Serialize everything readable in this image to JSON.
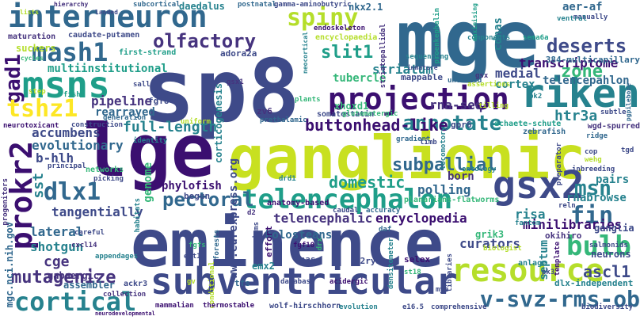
{
  "palette": {
    "p0": "#3b0f70",
    "p1": "#46337e",
    "p2": "#3e4a89",
    "p3": "#31688e",
    "p4": "#26828e",
    "p5": "#1f9e89",
    "p6": "#35b779",
    "p7": "#6ece58",
    "p8": "#b5de2b",
    "p9": "#fde725"
  },
  "words": [
    {
      "id": "mge",
      "text": "mge",
      "color": "#31688e"
    },
    {
      "id": "sp8",
      "text": "sp8",
      "color": "#3e4a89"
    },
    {
      "id": "lge",
      "text": "lge",
      "color": "#3b0f70"
    },
    {
      "id": "ganglionic",
      "text": "ganglionic",
      "color": "#c8e020"
    },
    {
      "id": "eminence",
      "text": "eminence",
      "color": "#3e4a89"
    },
    {
      "id": "interneuron",
      "text": "interneuron",
      "color": "#31688e"
    },
    {
      "id": "msns",
      "text": "msns",
      "color": "#1f9e89"
    },
    {
      "id": "mash1",
      "text": "mash1",
      "color": "#31688e"
    },
    {
      "id": "spiny",
      "text": "spiny",
      "color": "#b5de2b"
    },
    {
      "id": "olfactory",
      "text": "olfactory",
      "color": "#46337e"
    },
    {
      "id": "deserts",
      "text": "deserts",
      "color": "#3e4a89"
    },
    {
      "id": "slit1",
      "text": "slit1",
      "color": "#1f9e89"
    },
    {
      "id": "zone",
      "text": "zone",
      "color": "#35b779"
    },
    {
      "id": "projection",
      "text": "projection",
      "color": "#3b0f70"
    },
    {
      "id": "riken",
      "text": "riken",
      "color": "#26828e"
    },
    {
      "id": "gad1",
      "text": "gad1",
      "color": "#3b0f70"
    },
    {
      "id": "tshz1",
      "text": "tshz1",
      "color": "#fde725"
    },
    {
      "id": "dlx1",
      "text": "dlx1",
      "color": "#31688e"
    },
    {
      "id": "prokr2",
      "text": "prokr2",
      "color": "#3b0f70"
    },
    {
      "id": "telencephalon",
      "text": "telencephalon",
      "color": "#1f9e89"
    },
    {
      "id": "pectoral",
      "text": "pectoral",
      "color": "#31688e"
    },
    {
      "id": "gsx2",
      "text": "gsx2",
      "color": "#3e4a89"
    },
    {
      "id": "annotate",
      "text": "annotate",
      "color": "#26828e"
    },
    {
      "id": "fin",
      "text": "fin",
      "color": "#31688e"
    },
    {
      "id": "msn",
      "text": "msn",
      "color": "#26828e"
    },
    {
      "id": "bulb",
      "text": "bulb",
      "color": "#35b779"
    },
    {
      "id": "resource",
      "text": "resource",
      "color": "#b5de2b"
    },
    {
      "id": "subventricular",
      "text": "subventricular",
      "color": "#3e4a89"
    },
    {
      "id": "cortical",
      "text": "cortical",
      "color": "#26828e"
    },
    {
      "id": "v-svz-rms-ob",
      "text": "v-svz-rms-ob",
      "color": "#31688e"
    },
    {
      "id": "mutagenize",
      "text": "mutagenize",
      "color": "#46337e"
    },
    {
      "id": "ascl1",
      "text": "ascl1",
      "color": "#3e4a89"
    },
    {
      "id": "multiinstitutional",
      "text": "multiinstitutional",
      "color": "#1f9e89"
    },
    {
      "id": "striatum",
      "text": "striatum",
      "color": "#26828e"
    },
    {
      "id": "tubercle",
      "text": "tubercle",
      "color": "#35b779"
    },
    {
      "id": "transcriptome",
      "text": "transcriptome",
      "color": "#3b0f70"
    },
    {
      "id": "medial",
      "text": "medial",
      "color": "#3e4a89"
    },
    {
      "id": "pipeline",
      "text": "pipeline",
      "color": "#46337e"
    },
    {
      "id": "rearrayed",
      "text": "rearrayed",
      "color": "#31688e"
    },
    {
      "id": "full-length",
      "text": "full-length",
      "color": "#26828e"
    },
    {
      "id": "accumbens",
      "text": "accumbens",
      "color": "#3e4a89"
    },
    {
      "id": "evolutionary",
      "text": "evolutionary",
      "color": "#31688e"
    },
    {
      "id": "b-hlh",
      "text": "b-hlh",
      "color": "#3e4a89"
    },
    {
      "id": "buttonhead-like",
      "text": "buttonhead-like",
      "color": "#3b0f70"
    },
    {
      "id": "rna-seq",
      "text": "rna-seq",
      "color": "#46337e"
    },
    {
      "id": "cortex",
      "text": "cortex",
      "color": "#26828e"
    },
    {
      "id": "telencepahlon",
      "text": "telencepahlon",
      "color": "#31688e"
    },
    {
      "id": "htr3a",
      "text": "htr3a",
      "color": "#26828e"
    },
    {
      "id": "domestic",
      "text": "domestic",
      "color": "#1f9e89"
    },
    {
      "id": "subpallial",
      "text": "subpallial",
      "color": "#31688e"
    },
    {
      "id": "sst",
      "text": "sst",
      "color": "#26828e"
    },
    {
      "id": "phylofish",
      "text": "phylofish",
      "color": "#3b0f70"
    },
    {
      "id": "tangentially",
      "text": "tangentially",
      "color": "#3e4a89"
    },
    {
      "id": "telencephalic",
      "text": "telencephalic",
      "color": "#46337e"
    },
    {
      "id": "encyclopedia",
      "text": "encyclopedia",
      "color": "#3b0f70"
    },
    {
      "id": "polling",
      "text": "polling",
      "color": "#31688e"
    },
    {
      "id": "rnabrowse",
      "text": "rnabrowse",
      "color": "#26828e"
    },
    {
      "id": "minilibraries",
      "text": "minilibraries",
      "color": "#3b0f70"
    },
    {
      "id": "lateral",
      "text": "lateral",
      "color": "#31688e"
    },
    {
      "id": "shotgun",
      "text": "shotgun",
      "color": "#26828e"
    },
    {
      "id": "cge",
      "text": "cge",
      "color": "#46337e"
    },
    {
      "id": "holosteans",
      "text": "holosteans",
      "color": "#31688e"
    },
    {
      "id": "curators",
      "text": "curators",
      "color": "#3e4a89"
    },
    {
      "id": "risa",
      "text": "risa",
      "color": "#26828e"
    },
    {
      "id": "septum",
      "text": "septum",
      "color": "#26828e"
    },
    {
      "id": "neurons",
      "text": "neurons",
      "color": "#3e4a89"
    },
    {
      "id": "gabaergic",
      "text": "gabaergic",
      "color": "#46337e"
    },
    {
      "id": "assembler",
      "text": "assembler",
      "color": "#31688e"
    },
    {
      "id": "genome",
      "text": "genome",
      "color": "#35b779"
    },
    {
      "id": "born",
      "text": "born",
      "color": "#46337e"
    },
    {
      "id": "pairs",
      "text": "pairs",
      "color": "#26828e"
    },
    {
      "id": "emx2",
      "text": "emx2",
      "color": "#26828e"
    },
    {
      "id": "dnas",
      "text": "dnas",
      "color": "#3e4a89"
    },
    {
      "id": "grik3",
      "text": "grik3",
      "color": "#35b779"
    },
    {
      "id": "ganglia",
      "text": "ganglia",
      "color": "#3e4a89"
    },
    {
      "id": "okihiro",
      "text": "okihiro",
      "color": "#46337e"
    },
    {
      "id": "p2ry1",
      "text": "p2ry1",
      "color": "#3e4a89"
    },
    {
      "id": "selex",
      "text": "selex",
      "color": "#3b0f70"
    },
    {
      "id": "fgf8",
      "text": "fgf8",
      "color": "#3e4a89"
    },
    {
      "id": "xhoxd1",
      "text": "xhoxd1",
      "color": "#35b779"
    },
    {
      "id": "gpr6",
      "text": "gpr6",
      "color": "#3e4a89"
    },
    {
      "id": "corticogenesis",
      "text": "corticogenesis",
      "color": "#26828e"
    },
    {
      "id": "somatostatin",
      "text": "somatostatin",
      "color": "#3e4a89"
    },
    {
      "id": "zv6",
      "text": "zv6",
      "color": "#46337e"
    },
    {
      "id": "caudate-putamen",
      "text": "caudate-putamen",
      "color": "#3e4a89"
    },
    {
      "id": "maturation",
      "text": "maturation",
      "color": "#46337e"
    },
    {
      "id": "suckers",
      "text": "suckers",
      "color": "#b5de2b"
    },
    {
      "id": "first-strand",
      "text": "first-strand",
      "color": "#1f9e89"
    },
    {
      "id": "adora2a",
      "text": "adora2a",
      "color": "#3e4a89"
    },
    {
      "id": "daedalus",
      "text": "daedalus",
      "color": "#26828e"
    },
    {
      "id": "subcortical",
      "text": "subcortical",
      "color": "#31688e"
    },
    {
      "id": "postnatal",
      "text": "postnatal",
      "color": "#31688e"
    },
    {
      "id": "gamma-aminobutyric",
      "text": "gamma-aminobutyric",
      "color": "#3e4a89"
    },
    {
      "id": "nkx2-1",
      "text": "nkx2.1",
      "color": "#31688e"
    },
    {
      "id": "endoskeleton",
      "text": "endoskeleton",
      "color": "#3b0f70"
    },
    {
      "id": "encyclopaedia",
      "text": "encyclopaedia",
      "color": "#b5de2b"
    },
    {
      "id": "cdnas",
      "text": "cdnas",
      "color": "#26828e"
    },
    {
      "id": "aer-af",
      "text": "aer-af",
      "color": "#31688e"
    },
    {
      "id": "manually",
      "text": "manually",
      "color": "#3e4a89"
    },
    {
      "id": "ventral",
      "text": "ventral",
      "color": "#26828e"
    },
    {
      "id": "384-multicapillary",
      "text": "384-multicapillary",
      "color": "#31688e"
    },
    {
      "id": "components",
      "text": "components",
      "color": "#26828e"
    },
    {
      "id": "sema6a",
      "text": "sema6a",
      "color": "#1f9e89"
    },
    {
      "id": "sequencing",
      "text": "sequencing",
      "color": "#26828e"
    },
    {
      "id": "mappable",
      "text": "mappable",
      "color": "#3e4a89"
    },
    {
      "id": "unveiled",
      "text": "unveiled",
      "color": "#31688e"
    },
    {
      "id": "gsx",
      "text": "gsx",
      "color": "#46337e"
    },
    {
      "id": "assertions",
      "text": "assertions",
      "color": "#b5de2b"
    },
    {
      "id": "pk2",
      "text": "pk2",
      "color": "#26828e"
    },
    {
      "id": "subtle",
      "text": "subtle",
      "color": "#3e4a89"
    },
    {
      "id": "wgd-spurred",
      "text": "wgd-spurred",
      "color": "#46337e"
    },
    {
      "id": "tilling",
      "text": "tilling",
      "color": "#b5de2b"
    },
    {
      "id": "achaete-schute",
      "text": "achaete-schute",
      "color": "#1f9e89"
    },
    {
      "id": "zebrafish",
      "text": "zebrafish",
      "color": "#31688e"
    },
    {
      "id": "ridge",
      "text": "ridge",
      "color": "#31688e"
    },
    {
      "id": "cop",
      "text": "cop",
      "color": "#3e4a89"
    },
    {
      "id": "wehg",
      "text": "wehg",
      "color": "#b5de2b"
    },
    {
      "id": "tgd",
      "text": "tgd",
      "color": "#3e4a89"
    },
    {
      "id": "inbreeding",
      "text": "inbreeding",
      "color": "#3e4a89"
    },
    {
      "id": "planarians-flatworms",
      "text": "planarians-flatworms",
      "color": "#35b779"
    },
    {
      "id": "ontology",
      "text": "ontology",
      "color": "#26828e"
    },
    {
      "id": "reln",
      "text": "reln",
      "color": "#3e4a89"
    },
    {
      "id": "fantom",
      "text": "fantom",
      "color": "#26828e"
    },
    {
      "id": "accuracy",
      "text": "accuracy",
      "color": "#31688e"
    },
    {
      "id": "caudal",
      "text": "caudal",
      "color": "#3e4a89"
    },
    {
      "id": "anatomy-based",
      "text": "anatomy-based",
      "color": "#3b0f70"
    },
    {
      "id": "drd1",
      "text": "drd1",
      "color": "#26828e"
    },
    {
      "id": "glutamatergic",
      "text": "glutamatergic",
      "color": "#35b779"
    },
    {
      "id": "prethalamic",
      "text": "prethalamic",
      "color": "#31688e"
    },
    {
      "id": "plants",
      "text": "plants",
      "color": "#35b779"
    },
    {
      "id": "gsx1",
      "text": "gsx1",
      "color": "#46337e"
    },
    {
      "id": "sall",
      "text": "sall",
      "color": "#3e4a89"
    },
    {
      "id": "step",
      "text": "step",
      "color": "#b5de2b"
    },
    {
      "id": "fish",
      "text": "fish",
      "color": "#1f9e89"
    },
    {
      "id": "neurotoxicant",
      "text": "neurotoxicant",
      "color": "#3b0f70"
    },
    {
      "id": "construction",
      "text": "construction",
      "color": "#3e4a89"
    },
    {
      "id": "generation",
      "text": "generation",
      "color": "#31688e"
    },
    {
      "id": "uniform",
      "text": "uniform",
      "color": "#b5de2b"
    },
    {
      "id": "identity",
      "text": "identity",
      "color": "#26828e"
    },
    {
      "id": "principal",
      "text": "principal",
      "color": "#3e4a89"
    },
    {
      "id": "networks",
      "text": "networks",
      "color": "#35b779"
    },
    {
      "id": "picking",
      "text": "picking",
      "color": "#3e4a89"
    },
    {
      "id": "progenitors",
      "text": "progenitors",
      "color": "#46337e"
    },
    {
      "id": "habitats",
      "text": "habitats",
      "color": "#26828e"
    },
    {
      "id": "www-eurexpress-org",
      "text": "www.eurexpress.org",
      "color": "#3e4a89"
    },
    {
      "id": "begun",
      "text": "begun",
      "color": "#3e4a89"
    },
    {
      "id": "mgc-nci-nih-gov",
      "text": "mgc.nci.nih.gov",
      "color": "#31688e"
    },
    {
      "id": "careful",
      "text": "careful",
      "color": "#3e4a89"
    },
    {
      "id": "cxcl14",
      "text": "cxcl14",
      "color": "#46337e"
    },
    {
      "id": "appendages",
      "text": "appendages",
      "color": "#26828e"
    },
    {
      "id": "fgfs",
      "text": "fgfs",
      "color": "#35b779"
    },
    {
      "id": "ext13",
      "text": "ext13",
      "color": "#3e4a89"
    },
    {
      "id": "fgf10",
      "text": "fgf10",
      "color": "#3b0f70"
    },
    {
      "id": "forests",
      "text": "forests",
      "color": "#31688e"
    },
    {
      "id": "organisms",
      "text": "organisms",
      "color": "#3e4a89"
    },
    {
      "id": "effort",
      "text": "effort",
      "color": "#3b0f70"
    },
    {
      "id": "d2",
      "text": "d2",
      "color": "#46337e"
    },
    {
      "id": "daf",
      "text": "daf",
      "color": "#31688e"
    },
    {
      "id": "drx",
      "text": "drx",
      "color": "#35b779"
    },
    {
      "id": "densitometer",
      "text": "densitometer",
      "color": "#26828e"
    },
    {
      "id": "biologist",
      "text": "biologist",
      "color": "#b5de2b"
    },
    {
      "id": "anlage",
      "text": "anlage",
      "color": "#26828e"
    },
    {
      "id": "template",
      "text": "template",
      "color": "#3b0f70"
    },
    {
      "id": "salmonids",
      "text": "salmonids",
      "color": "#3e4a89"
    },
    {
      "id": "dlx-independent",
      "text": "dlx-independent",
      "color": "#26828e"
    },
    {
      "id": "ackr3",
      "text": "ackr3",
      "color": "#3e4a89"
    },
    {
      "id": "conditional",
      "text": "conditional",
      "color": "#b5de2b"
    },
    {
      "id": "tfs",
      "text": "tfs",
      "color": "#31688e"
    },
    {
      "id": "database",
      "text": "database",
      "color": "#3e4a89"
    },
    {
      "id": "acidergic",
      "text": "acidergic",
      "color": "#3b0f70"
    },
    {
      "id": "libraries",
      "text": "libraries",
      "color": "#3e4a89"
    },
    {
      "id": "collection",
      "text": "collection",
      "color": "#46337e"
    },
    {
      "id": "mammalian",
      "text": "mammalian",
      "color": "#3b0f70"
    },
    {
      "id": "thermostable",
      "text": "thermostable",
      "color": "#3b0f70"
    },
    {
      "id": "wolf-hirschhorn",
      "text": "wolf-hirschhorn",
      "color": "#3e4a89"
    },
    {
      "id": "evolution",
      "text": "evolution",
      "color": "#26828e"
    },
    {
      "id": "e16-5",
      "text": "e16.5",
      "color": "#3e4a89"
    },
    {
      "id": "comprehensive",
      "text": "comprehensive",
      "color": "#3e4a89"
    },
    {
      "id": "biodiversity",
      "text": "biodiversity",
      "color": "#3e4a89"
    },
    {
      "id": "neurodevelopmental",
      "text": "neurodevelopmental",
      "color": "#3b0f70"
    },
    {
      "id": "hierarchy",
      "text": "hierarchy",
      "color": "#46337e"
    },
    {
      "id": "landed",
      "text": "landed",
      "color": "#3e4a89"
    },
    {
      "id": "lists",
      "text": "lists",
      "color": "#b5de2b"
    },
    {
      "id": "cycles",
      "text": "cycles",
      "color": "#35b779"
    },
    {
      "id": "neocortical",
      "text": "neocortical",
      "color": "#26828e"
    },
    {
      "id": "striatopallidal",
      "text": "striatopallidal",
      "color": "#46337e"
    },
    {
      "id": "proenkephalin",
      "text": "proenkephalin",
      "color": "#1f9e89"
    },
    {
      "id": "pgpilebone",
      "text": "pgpilebone",
      "color": "#31688e"
    },
    {
      "id": "maximising",
      "text": "maximising",
      "color": "#1f9e89"
    },
    {
      "id": "locomotory",
      "text": "locomotory",
      "color": "#26828e"
    },
    {
      "id": "limb",
      "text": "limb",
      "color": "#3e4a89"
    },
    {
      "id": "gradient",
      "text": "gradient",
      "color": "#31688e"
    },
    {
      "id": "immature",
      "text": "immature",
      "color": "#3e4a89"
    },
    {
      "id": "preparator",
      "text": "preparator",
      "color": "#3e4a89"
    },
    {
      "id": "pk3",
      "text": "pk3",
      "color": "#3e4a89"
    },
    {
      "id": "st18",
      "text": "st18",
      "color": "#35b779"
    },
    {
      "id": "mya",
      "text": "mya",
      "color": "#3e4a89"
    },
    {
      "id": "gv",
      "text": "gv",
      "color": "#b5de2b"
    }
  ]
}
